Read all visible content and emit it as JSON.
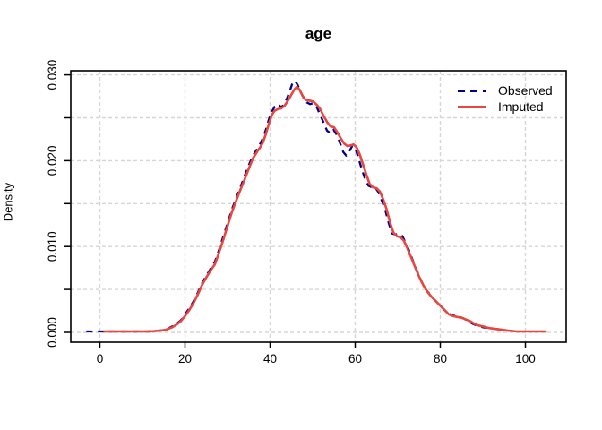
{
  "chart_data": {
    "type": "line",
    "title": "age",
    "xlabel": "",
    "ylabel": "Density",
    "xlim": [
      -7,
      108
    ],
    "ylim": [
      0,
      0.03
    ],
    "x_ticks": [
      0,
      20,
      40,
      60,
      80,
      100
    ],
    "x_tick_labels": [
      "0",
      "20",
      "40",
      "60",
      "80",
      "100"
    ],
    "y_ticks": [
      0.0,
      0.005,
      0.01,
      0.015,
      0.02,
      0.025,
      0.03
    ],
    "y_tick_labels": [
      "0.000",
      "",
      "0.010",
      "",
      "0.020",
      "",
      "0.030"
    ],
    "grid": true,
    "legend_position": "top-right",
    "colors": {
      "observed": "#00008B",
      "imputed": "#E8463E",
      "grid": "#D6D6D6",
      "axis": "#000000",
      "background": "#FFFFFF"
    },
    "series": [
      {
        "name": "Observed",
        "style": "dashed",
        "color": "#00008B",
        "points": [
          [
            -3.2,
            0.0001
          ],
          [
            -0.5,
            0.0001
          ],
          [
            3,
            0.0001
          ],
          [
            7,
            0.0001
          ],
          [
            11,
            0.0001
          ],
          [
            14,
            0.0002
          ],
          [
            15.5,
            0.0003
          ],
          [
            17,
            0.0007
          ],
          [
            18,
            0.001
          ],
          [
            19,
            0.0014
          ],
          [
            20,
            0.0021
          ],
          [
            21,
            0.0028
          ],
          [
            22,
            0.0036
          ],
          [
            23,
            0.0046
          ],
          [
            24,
            0.0057
          ],
          [
            25,
            0.0066
          ],
          [
            26,
            0.0074
          ],
          [
            27,
            0.0082
          ],
          [
            28,
            0.0096
          ],
          [
            29,
            0.0112
          ],
          [
            30,
            0.0127
          ],
          [
            31,
            0.0143
          ],
          [
            32,
            0.0156
          ],
          [
            33,
            0.0169
          ],
          [
            34,
            0.0182
          ],
          [
            35,
            0.0195
          ],
          [
            36,
            0.0206
          ],
          [
            37,
            0.0214
          ],
          [
            37.6,
            0.0219
          ],
          [
            38.3,
            0.0226
          ],
          [
            39,
            0.0236
          ],
          [
            39.7,
            0.0248
          ],
          [
            40.4,
            0.0257
          ],
          [
            41.1,
            0.0263
          ],
          [
            41.9,
            0.0266
          ],
          [
            42.6,
            0.0262
          ],
          [
            43.3,
            0.0266
          ],
          [
            44,
            0.0273
          ],
          [
            44.7,
            0.0282
          ],
          [
            45.3,
            0.0291
          ],
          [
            45.9,
            0.0293
          ],
          [
            46.5,
            0.0288
          ],
          [
            47.1,
            0.0281
          ],
          [
            47.8,
            0.0274
          ],
          [
            48.6,
            0.0268
          ],
          [
            49.4,
            0.0266
          ],
          [
            50.2,
            0.0267
          ],
          [
            51,
            0.0262
          ],
          [
            51.8,
            0.0253
          ],
          [
            52.6,
            0.0244
          ],
          [
            53.4,
            0.0235
          ],
          [
            54.2,
            0.0232
          ],
          [
            54.9,
            0.0236
          ],
          [
            55.7,
            0.023
          ],
          [
            56.4,
            0.0221
          ],
          [
            57.2,
            0.021
          ],
          [
            57.9,
            0.0206
          ],
          [
            58.6,
            0.0211
          ],
          [
            59.3,
            0.0217
          ],
          [
            60,
            0.0215
          ],
          [
            60.7,
            0.0204
          ],
          [
            61.5,
            0.0191
          ],
          [
            62.3,
            0.0179
          ],
          [
            63.1,
            0.0171
          ],
          [
            63.9,
            0.0169
          ],
          [
            64.7,
            0.0169
          ],
          [
            65.5,
            0.0163
          ],
          [
            66.3,
            0.0153
          ],
          [
            67.1,
            0.0142
          ],
          [
            67.9,
            0.0127
          ],
          [
            68.7,
            0.0115
          ],
          [
            69.5,
            0.0114
          ],
          [
            70.3,
            0.0115
          ],
          [
            71.1,
            0.0112
          ],
          [
            71.9,
            0.0104
          ],
          [
            72.7,
            0.0095
          ],
          [
            73.6,
            0.0083
          ],
          [
            74.6,
            0.0071
          ],
          [
            75.6,
            0.0059
          ],
          [
            76.6,
            0.005
          ],
          [
            77.6,
            0.0044
          ],
          [
            78.6,
            0.0038
          ],
          [
            79.6,
            0.0033
          ],
          [
            80.6,
            0.0028
          ],
          [
            81.6,
            0.0023
          ],
          [
            82.6,
            0.002
          ],
          [
            83.6,
            0.0019
          ],
          [
            84.6,
            0.0018
          ],
          [
            85.6,
            0.0016
          ],
          [
            86.6,
            0.0013
          ],
          [
            87.6,
            0.001
          ],
          [
            88.6,
            0.0008
          ],
          [
            90,
            0.0006
          ],
          [
            91.5,
            0.0005
          ],
          [
            93,
            0.0004
          ],
          [
            94.5,
            0.0003
          ],
          [
            96,
            0.0002
          ],
          [
            97.5,
            0.0001
          ]
        ]
      },
      {
        "name": "Imputed",
        "style": "solid",
        "color": "#E8463E",
        "points": [
          [
            0.8,
            0.0001
          ],
          [
            4,
            0.0001
          ],
          [
            8,
            0.0001
          ],
          [
            12,
            0.0001
          ],
          [
            14,
            0.0002
          ],
          [
            15.5,
            0.0003
          ],
          [
            17,
            0.0006
          ],
          [
            18,
            0.0009
          ],
          [
            19,
            0.0013
          ],
          [
            20,
            0.0019
          ],
          [
            21,
            0.0026
          ],
          [
            22,
            0.0034
          ],
          [
            23,
            0.0044
          ],
          [
            24,
            0.0055
          ],
          [
            25,
            0.0064
          ],
          [
            26,
            0.0072
          ],
          [
            27,
            0.0079
          ],
          [
            28,
            0.0093
          ],
          [
            29,
            0.0108
          ],
          [
            30,
            0.0124
          ],
          [
            31,
            0.014
          ],
          [
            32,
            0.0153
          ],
          [
            33,
            0.0166
          ],
          [
            34,
            0.0178
          ],
          [
            35,
            0.0191
          ],
          [
            36,
            0.0203
          ],
          [
            37,
            0.0211
          ],
          [
            37.6,
            0.0215
          ],
          [
            38.3,
            0.0221
          ],
          [
            39,
            0.0231
          ],
          [
            39.7,
            0.0243
          ],
          [
            40.4,
            0.0253
          ],
          [
            41,
            0.0258
          ],
          [
            41.8,
            0.026
          ],
          [
            42.6,
            0.0261
          ],
          [
            43.4,
            0.0264
          ],
          [
            44.2,
            0.027
          ],
          [
            45,
            0.0277
          ],
          [
            45.7,
            0.0283
          ],
          [
            46.3,
            0.0286
          ],
          [
            46.9,
            0.0283
          ],
          [
            47.6,
            0.0276
          ],
          [
            48.3,
            0.0271
          ],
          [
            49.2,
            0.027
          ],
          [
            50.1,
            0.0269
          ],
          [
            51,
            0.0265
          ],
          [
            51.8,
            0.026
          ],
          [
            52.6,
            0.0252
          ],
          [
            53.4,
            0.0245
          ],
          [
            54.2,
            0.024
          ],
          [
            55,
            0.0239
          ],
          [
            55.8,
            0.0233
          ],
          [
            56.6,
            0.0226
          ],
          [
            57.4,
            0.022
          ],
          [
            58.2,
            0.0217
          ],
          [
            59,
            0.0218
          ],
          [
            59.6,
            0.0219
          ],
          [
            60.3,
            0.0216
          ],
          [
            61,
            0.0208
          ],
          [
            61.8,
            0.0196
          ],
          [
            62.6,
            0.0184
          ],
          [
            63.4,
            0.0173
          ],
          [
            64.2,
            0.0169
          ],
          [
            65,
            0.0168
          ],
          [
            65.8,
            0.0164
          ],
          [
            66.6,
            0.0155
          ],
          [
            67.4,
            0.0143
          ],
          [
            68.2,
            0.0128
          ],
          [
            69,
            0.0116
          ],
          [
            69.8,
            0.0112
          ],
          [
            70.6,
            0.0111
          ],
          [
            71.4,
            0.0107
          ],
          [
            72.2,
            0.0099
          ],
          [
            73,
            0.0089
          ],
          [
            74,
            0.0077
          ],
          [
            75,
            0.0065
          ],
          [
            76,
            0.0055
          ],
          [
            77,
            0.0047
          ],
          [
            78,
            0.0041
          ],
          [
            79,
            0.0036
          ],
          [
            80,
            0.0031
          ],
          [
            81,
            0.0026
          ],
          [
            82,
            0.0021
          ],
          [
            83,
            0.0019
          ],
          [
            84,
            0.0018
          ],
          [
            85,
            0.0017
          ],
          [
            86,
            0.0015
          ],
          [
            87,
            0.0013
          ],
          [
            88,
            0.001
          ],
          [
            89,
            0.0008
          ],
          [
            90,
            0.0007
          ],
          [
            91.5,
            0.0005
          ],
          [
            93,
            0.0004
          ],
          [
            94.5,
            0.0003
          ],
          [
            96,
            0.0002
          ],
          [
            98,
            0.0001
          ],
          [
            101,
            0.0001
          ],
          [
            105,
            0.0001
          ]
        ]
      }
    ]
  }
}
